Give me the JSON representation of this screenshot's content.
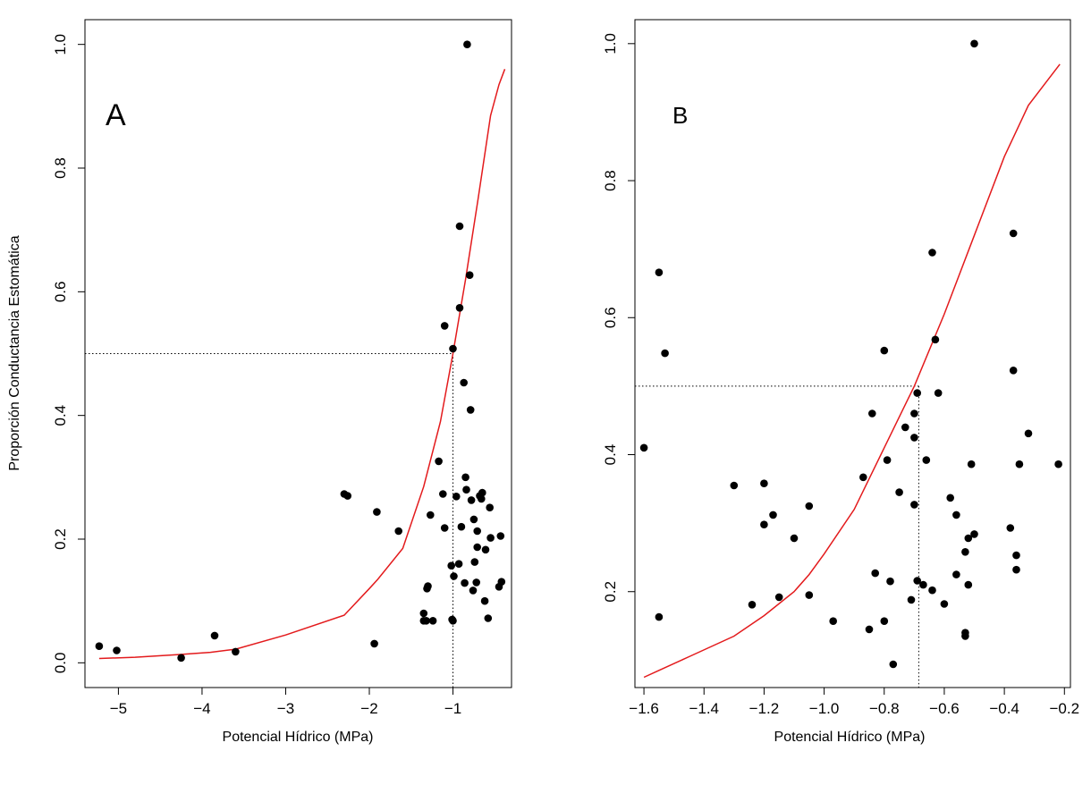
{
  "chart_data": [
    {
      "type": "scatter",
      "panel_label": "A",
      "xlabel": "Potencial Hídrico (MPa)",
      "ylabel": "Proporción Conductancia Estomática",
      "xlim": [
        -5.4,
        -0.3
      ],
      "ylim": [
        -0.04,
        1.04
      ],
      "xticks": [
        -5,
        -4,
        -3,
        -2,
        -1
      ],
      "xtick_labels": [
        "−5",
        "−4",
        "−3",
        "−2",
        "−1"
      ],
      "yticks": [
        0.0,
        0.2,
        0.4,
        0.6,
        0.8,
        1.0
      ],
      "ytick_labels": [
        "0.0",
        "0.2",
        "0.4",
        "0.6",
        "0.8",
        "1.0"
      ],
      "grid": false,
      "threshold": {
        "x": -1.0,
        "y": 0.5
      },
      "curve_color": "#e31a1c",
      "point_color": "#000000",
      "fit_curve": {
        "x": [
          -5.23,
          -4.8,
          -4.3,
          -3.9,
          -3.6,
          -3.0,
          -2.3,
          -2.0,
          -1.9,
          -1.6,
          -1.35,
          -1.15,
          -1.0,
          -0.85,
          -0.7,
          -0.55,
          -0.45,
          -0.38
        ],
        "y": [
          0.007,
          0.009,
          0.013,
          0.017,
          0.022,
          0.045,
          0.077,
          0.12,
          0.135,
          0.185,
          0.285,
          0.39,
          0.5,
          0.62,
          0.75,
          0.885,
          0.935,
          0.96
        ]
      },
      "points": {
        "x": [
          -5.23,
          -5.02,
          -4.25,
          -3.85,
          -3.6,
          -2.3,
          -2.26,
          -1.94,
          -1.91,
          -1.65,
          -1.35,
          -1.32,
          -1.31,
          -1.3,
          -1.27,
          -1.24,
          -1.17,
          -1.12,
          -1.1,
          -1.1,
          -1.02,
          -1.01,
          -1.0,
          -0.99,
          -0.96,
          -0.93,
          -0.92,
          -0.92,
          -0.9,
          -0.87,
          -0.86,
          -0.85,
          -0.84,
          -0.83,
          -0.8,
          -0.79,
          -0.78,
          -0.76,
          -0.75,
          -0.74,
          -0.72,
          -0.71,
          -0.71,
          -0.68,
          -0.66,
          -0.65,
          -0.62,
          -0.61,
          -0.58,
          -0.56,
          -0.55,
          -0.45,
          -0.43,
          -0.42,
          -1.35,
          -1.0
        ],
        "y": [
          0.027,
          0.02,
          0.008,
          0.044,
          0.018,
          0.273,
          0.27,
          0.031,
          0.244,
          0.213,
          0.08,
          0.068,
          0.12,
          0.124,
          0.239,
          0.068,
          0.326,
          0.273,
          0.545,
          0.218,
          0.157,
          0.07,
          0.068,
          0.14,
          0.269,
          0.16,
          0.706,
          0.574,
          0.22,
          0.453,
          0.129,
          0.3,
          0.28,
          1.0,
          0.627,
          0.409,
          0.263,
          0.117,
          0.232,
          0.163,
          0.13,
          0.213,
          0.187,
          0.27,
          0.265,
          0.275,
          0.1,
          0.183,
          0.072,
          0.251,
          0.202,
          0.123,
          0.205,
          0.131,
          0.068,
          0.508
        ]
      }
    },
    {
      "type": "scatter",
      "panel_label": "B",
      "xlabel": "Potencial Hídrico (MPa)",
      "ylabel": "",
      "xlim": [
        -1.63,
        -0.18
      ],
      "ylim": [
        0.06,
        1.035
      ],
      "xticks": [
        -1.6,
        -1.4,
        -1.2,
        -1.0,
        -0.8,
        -0.6,
        -0.4,
        -0.2
      ],
      "xtick_labels": [
        "−1.6",
        "−1.4",
        "−1.2",
        "−1.0",
        "−0.8",
        "−0.6",
        "−0.4",
        "−0.2"
      ],
      "yticks": [
        0.2,
        0.4,
        0.6,
        0.8,
        1.0
      ],
      "ytick_labels": [
        "0.2",
        "0.4",
        "0.6",
        "0.8",
        "1.0"
      ],
      "grid": false,
      "threshold": {
        "x": -0.685,
        "y": 0.5
      },
      "curve_color": "#e31a1c",
      "point_color": "#000000",
      "fit_curve": {
        "x": [
          -1.6,
          -1.55,
          -1.45,
          -1.3,
          -1.2,
          -1.1,
          -1.05,
          -1.0,
          -0.9,
          -0.8,
          -0.7,
          -0.6,
          -0.5,
          -0.4,
          -0.32,
          -0.25,
          -0.215
        ],
        "y": [
          0.075,
          0.085,
          0.105,
          0.135,
          0.165,
          0.2,
          0.225,
          0.255,
          0.32,
          0.41,
          0.5,
          0.605,
          0.72,
          0.835,
          0.91,
          0.95,
          0.97
        ]
      },
      "points": {
        "x": [
          -1.6,
          -1.55,
          -1.55,
          -1.53,
          -1.3,
          -1.24,
          -1.2,
          -1.2,
          -1.17,
          -1.15,
          -1.1,
          -1.05,
          -1.05,
          -0.97,
          -0.87,
          -0.85,
          -0.84,
          -0.83,
          -0.8,
          -0.8,
          -0.79,
          -0.78,
          -0.77,
          -0.75,
          -0.73,
          -0.71,
          -0.7,
          -0.7,
          -0.7,
          -0.69,
          -0.69,
          -0.67,
          -0.66,
          -0.64,
          -0.64,
          -0.63,
          -0.62,
          -0.6,
          -0.58,
          -0.56,
          -0.56,
          -0.53,
          -0.53,
          -0.53,
          -0.52,
          -0.52,
          -0.51,
          -0.5,
          -0.5,
          -0.38,
          -0.37,
          -0.37,
          -0.36,
          -0.36,
          -0.35,
          -0.32,
          -0.22
        ],
        "y": [
          0.41,
          0.666,
          0.163,
          0.548,
          0.355,
          0.181,
          0.358,
          0.298,
          0.312,
          0.192,
          0.278,
          0.325,
          0.195,
          0.157,
          0.367,
          0.145,
          0.46,
          0.227,
          0.552,
          0.157,
          0.392,
          0.215,
          0.094,
          0.345,
          0.44,
          0.188,
          0.46,
          0.425,
          0.327,
          0.216,
          0.49,
          0.21,
          0.392,
          0.695,
          0.202,
          0.568,
          0.49,
          0.182,
          0.337,
          0.225,
          0.312,
          0.135,
          0.14,
          0.258,
          0.278,
          0.21,
          0.386,
          0.284,
          1.0,
          0.293,
          0.723,
          0.523,
          0.253,
          0.232,
          0.386,
          0.431,
          0.386
        ]
      }
    }
  ]
}
